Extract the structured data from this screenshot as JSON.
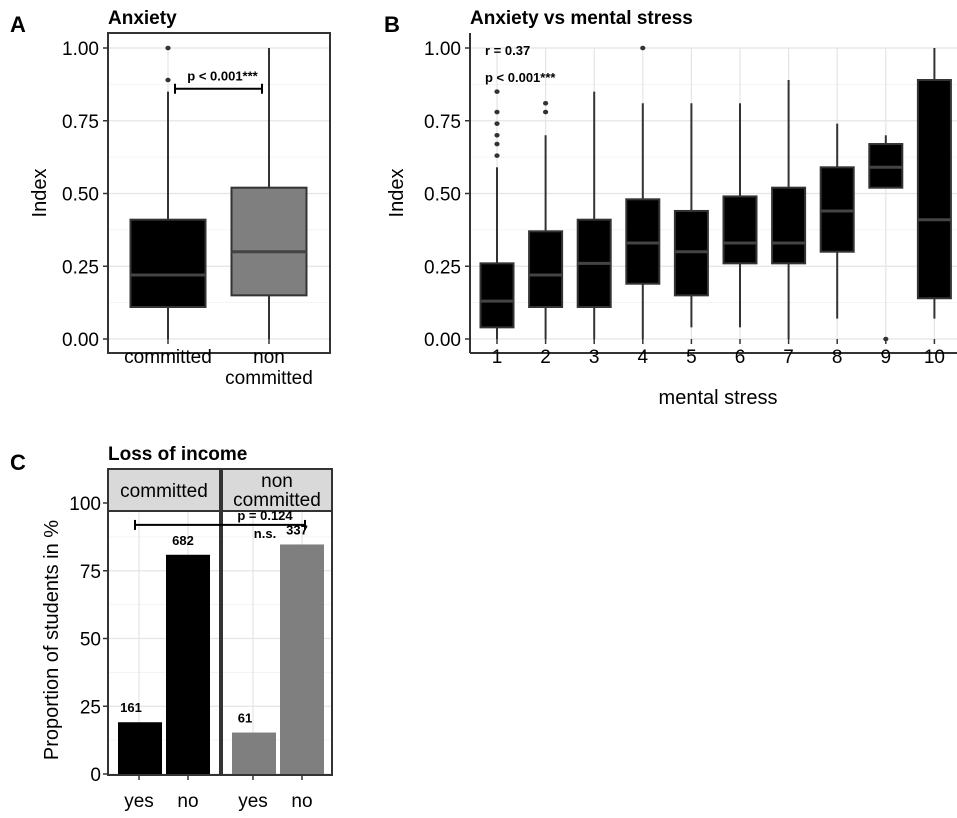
{
  "panels": {
    "A": {
      "letter": "A",
      "title": "Anxiety"
    },
    "B": {
      "letter": "B",
      "title": "Anxiety vs mental stress"
    },
    "C": {
      "letter": "C",
      "title": "Loss of income"
    }
  },
  "chart_data": [
    {
      "id": "A",
      "type": "box",
      "title": "Anxiety",
      "xlabel": "",
      "ylabel": "Index",
      "ylim": [
        0,
        1
      ],
      "yticks": [
        "0.00",
        "0.25",
        "0.50",
        "0.75",
        "1.00"
      ],
      "ytick_values": [
        0,
        0.25,
        0.5,
        0.75,
        1.0
      ],
      "grid": true,
      "categories": [
        "committed",
        "non committed"
      ],
      "category_lines": [
        [
          "committed"
        ],
        [
          "non",
          "committed"
        ]
      ],
      "colors": [
        "#000000",
        "#7f7f7f"
      ],
      "boxes": [
        {
          "q1": 0.11,
          "median": 0.22,
          "q3": 0.41,
          "whisker_low": 0.0,
          "whisker_high": 0.85,
          "outliers": [
            0.89,
            1.0
          ]
        },
        {
          "q1": 0.15,
          "median": 0.3,
          "q3": 0.52,
          "whisker_low": 0.0,
          "whisker_high": 1.0,
          "outliers": []
        }
      ],
      "annotations": [
        {
          "text": "p < 0.001***",
          "y": 0.86,
          "from": 0,
          "to": 1
        }
      ]
    },
    {
      "id": "B",
      "type": "box",
      "title": "Anxiety vs mental stress",
      "xlabel": "mental stress",
      "ylabel": "Index",
      "ylim": [
        0,
        1
      ],
      "yticks": [
        "0.00",
        "0.25",
        "0.50",
        "0.75",
        "1.00"
      ],
      "ytick_values": [
        0,
        0.25,
        0.5,
        0.75,
        1.0
      ],
      "grid": true,
      "categories": [
        "1",
        "2",
        "3",
        "4",
        "5",
        "6",
        "7",
        "8",
        "9",
        "10"
      ],
      "boxes": [
        {
          "q1": 0.04,
          "median": 0.13,
          "q3": 0.26,
          "whisker_low": 0.0,
          "whisker_high": 0.59,
          "outliers": [
            0.63,
            0.67,
            0.7,
            0.74,
            0.78,
            0.85
          ]
        },
        {
          "q1": 0.11,
          "median": 0.22,
          "q3": 0.37,
          "whisker_low": 0.0,
          "whisker_high": 0.7,
          "outliers": [
            0.78,
            0.81
          ]
        },
        {
          "q1": 0.11,
          "median": 0.26,
          "q3": 0.41,
          "whisker_low": 0.0,
          "whisker_high": 0.85,
          "outliers": []
        },
        {
          "q1": 0.19,
          "median": 0.33,
          "q3": 0.48,
          "whisker_low": 0.0,
          "whisker_high": 0.81,
          "outliers": [
            1.0
          ]
        },
        {
          "q1": 0.15,
          "median": 0.3,
          "q3": 0.44,
          "whisker_low": 0.04,
          "whisker_high": 0.81,
          "outliers": []
        },
        {
          "q1": 0.26,
          "median": 0.33,
          "q3": 0.49,
          "whisker_low": 0.04,
          "whisker_high": 0.81,
          "outliers": []
        },
        {
          "q1": 0.26,
          "median": 0.33,
          "q3": 0.52,
          "whisker_low": 0.0,
          "whisker_high": 0.89,
          "outliers": []
        },
        {
          "q1": 0.3,
          "median": 0.44,
          "q3": 0.59,
          "whisker_low": 0.07,
          "whisker_high": 0.74,
          "outliers": []
        },
        {
          "q1": 0.52,
          "median": 0.59,
          "q3": 0.67,
          "whisker_low": 0.52,
          "whisker_high": 0.7,
          "outliers": [
            0.0
          ]
        },
        {
          "q1": 0.14,
          "median": 0.41,
          "q3": 0.89,
          "whisker_low": 0.07,
          "whisker_high": 1.0,
          "outliers": []
        }
      ],
      "annotations": [
        {
          "text": "r = 0.37"
        },
        {
          "text": "p < 0.001***"
        }
      ]
    },
    {
      "id": "C",
      "type": "bar",
      "title": "Loss of income",
      "xlabel": "",
      "ylabel": "Proportion of students in %",
      "ylim": [
        0,
        100
      ],
      "yticks": [
        "0",
        "25",
        "50",
        "75",
        "100"
      ],
      "ytick_values": [
        0,
        25,
        50,
        75,
        100
      ],
      "grid": true,
      "facets": [
        {
          "strip": [
            "committed"
          ],
          "color": "#000000",
          "categories": [
            "yes",
            "no"
          ],
          "values": [
            19.1,
            80.9
          ],
          "counts": [
            "161",
            "682"
          ]
        },
        {
          "strip": [
            "non",
            "committed"
          ],
          "color": "#7f7f7f",
          "categories": [
            "yes",
            "no"
          ],
          "values": [
            15.3,
            84.7
          ],
          "counts": [
            "61",
            "337"
          ]
        }
      ],
      "annotations": [
        {
          "text": "p = 0.124",
          "subtext": "n.s.",
          "y": 101.5
        }
      ]
    }
  ]
}
